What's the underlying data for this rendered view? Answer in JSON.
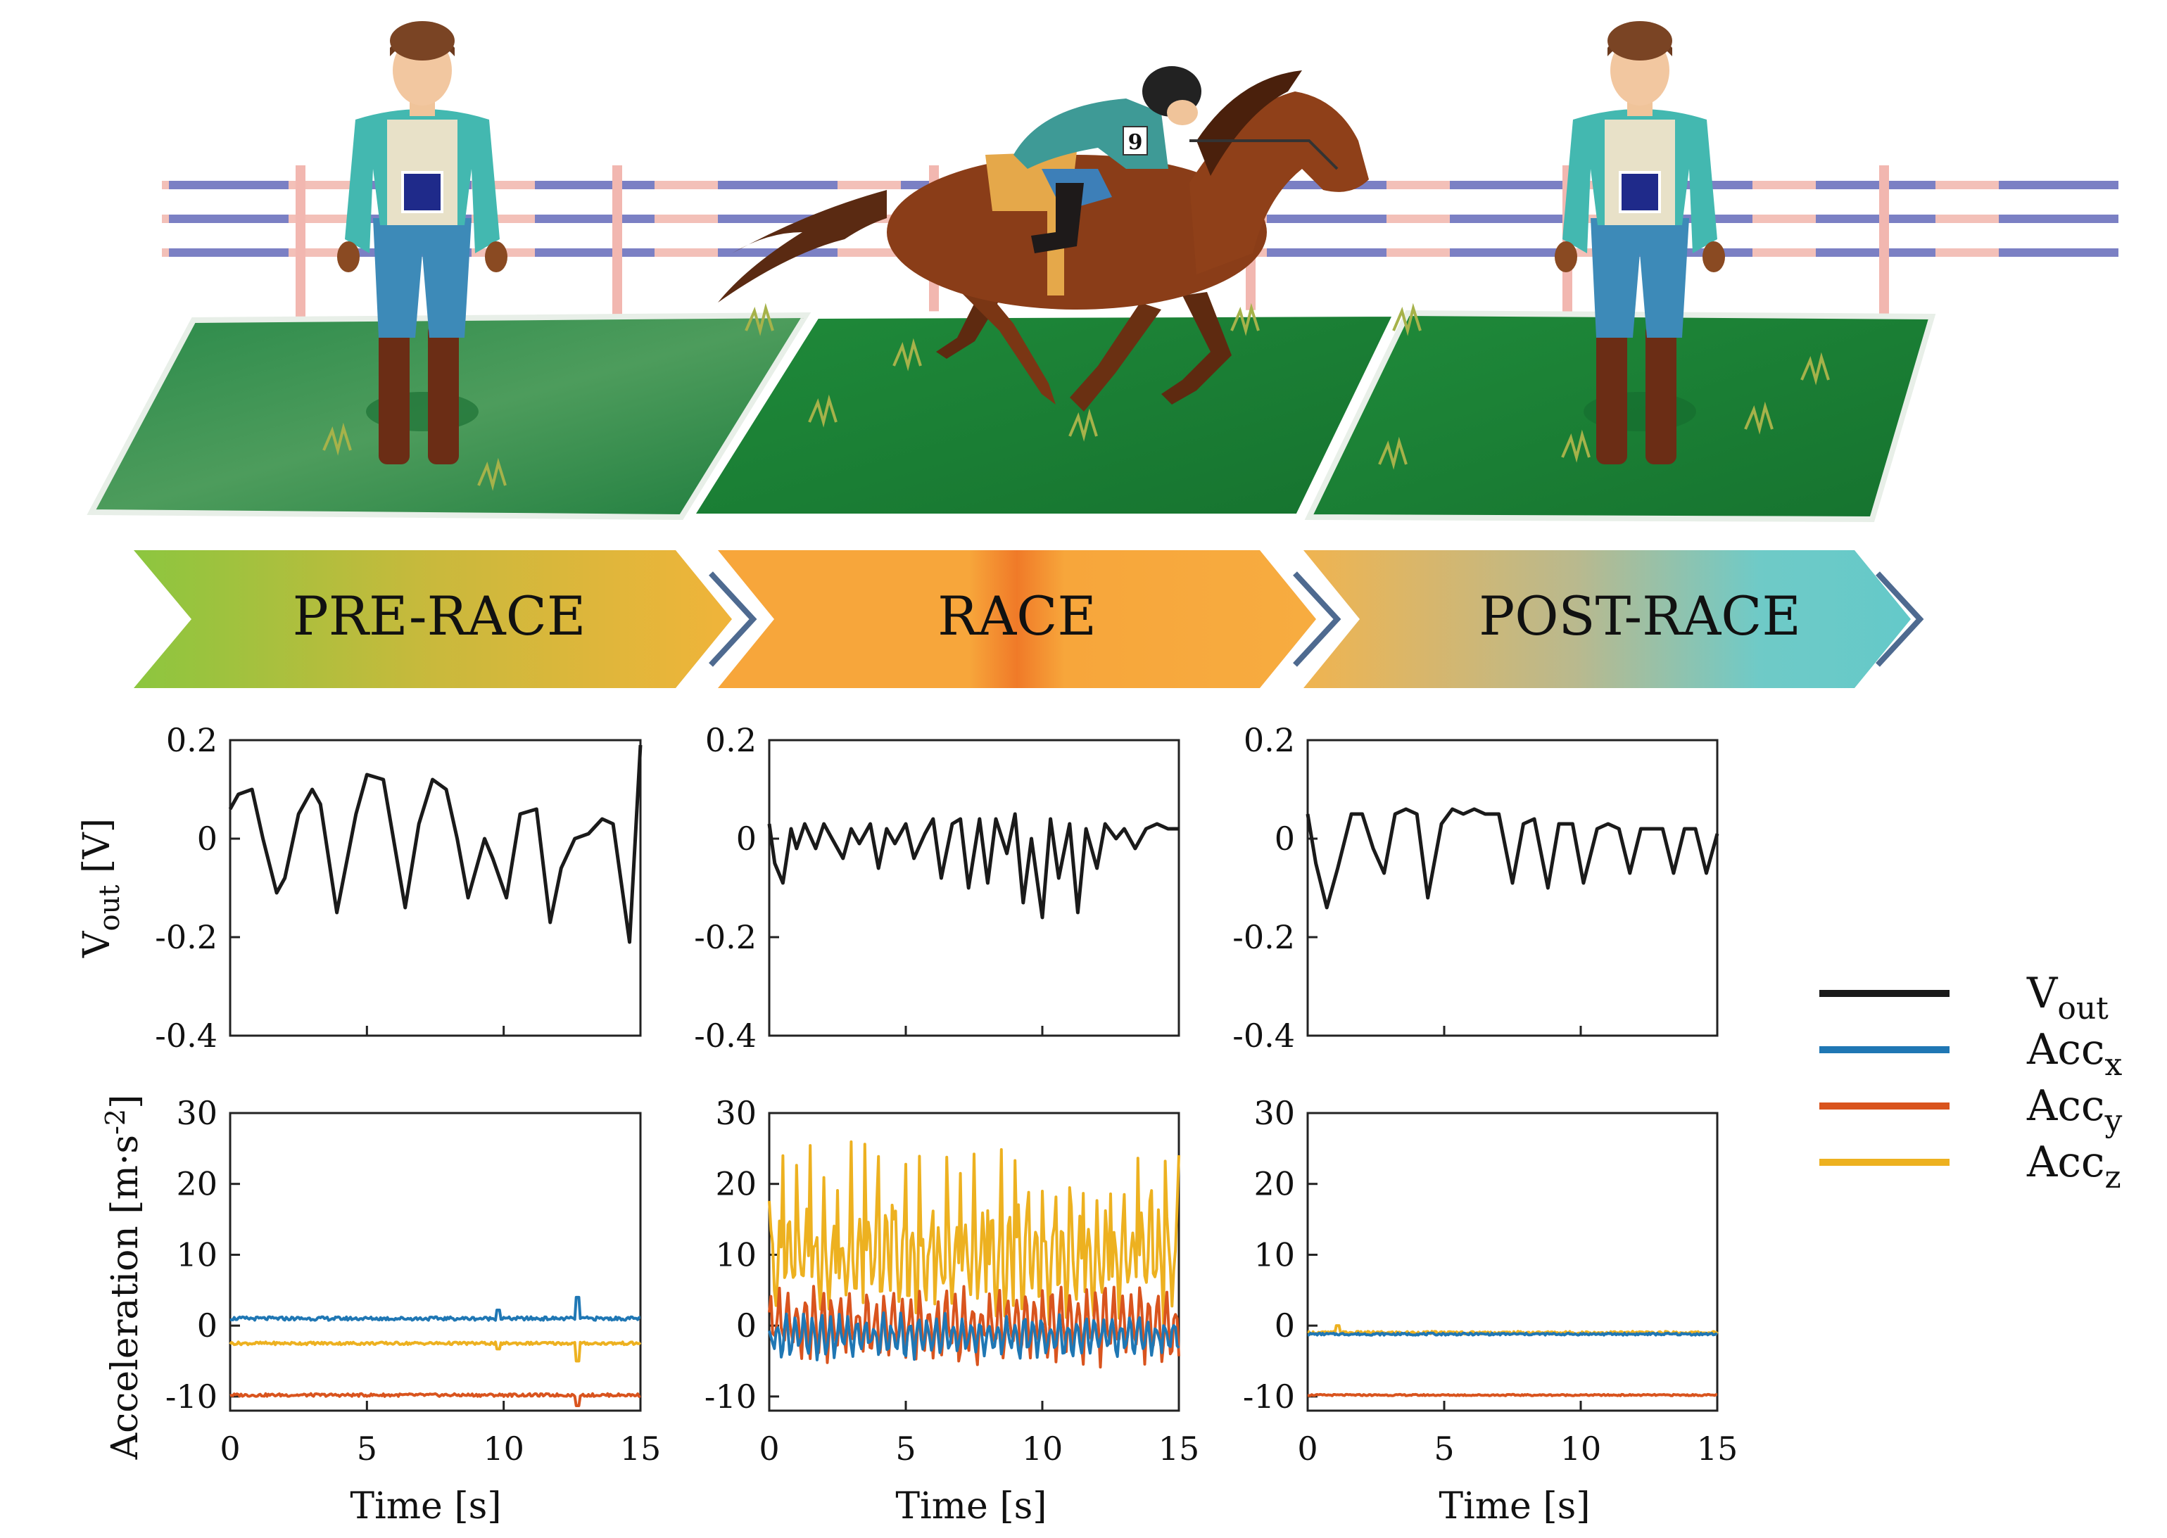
{
  "stages": [
    {
      "label": "PRE-RACE"
    },
    {
      "label": "RACE"
    },
    {
      "label": "POST-RACE"
    }
  ],
  "axis": {
    "x_label": "Time [s]",
    "vout_label_main": "V",
    "vout_label_sub": "out",
    "vout_label_unit": " [V]",
    "acc_label_main": "Acceleration [m·s",
    "acc_label_sup": "-2",
    "acc_label_end": "]"
  },
  "jockey": {
    "bib_number": "9"
  },
  "colors": {
    "vout": "#1a1a1a",
    "acc_x": "#1f77b4",
    "acc_y": "#d9541e",
    "acc_z": "#edb120",
    "grass": "#1e8a3c",
    "fence_rail": "#7b80c4",
    "fence_post": "#f2b7b0"
  },
  "legend": [
    {
      "main": "V",
      "sub": "out",
      "color": "#1a1a1a"
    },
    {
      "main": "Acc",
      "sub": "x",
      "color": "#1f77b4"
    },
    {
      "main": "Acc",
      "sub": "y",
      "color": "#d9541e"
    },
    {
      "main": "Acc",
      "sub": "z",
      "color": "#edb120"
    }
  ],
  "chart_data": [
    {
      "type": "line",
      "panel": "PRE-RACE",
      "ylabel": "V_out [V]",
      "xlim": [
        0,
        15
      ],
      "ylim": [
        -0.4,
        0.2
      ],
      "xticks": [
        0,
        5,
        10,
        15
      ],
      "yticks": [
        -0.4,
        -0.2,
        0,
        0.2
      ],
      "series": [
        {
          "name": "Vout",
          "x": [
            0,
            0.3,
            0.8,
            1.2,
            1.7,
            2.0,
            2.5,
            3.0,
            3.3,
            3.9,
            4.6,
            5.0,
            5.6,
            6.4,
            6.9,
            7.4,
            7.9,
            8.3,
            8.7,
            9.0,
            9.3,
            9.6,
            10.1,
            10.6,
            11.2,
            11.7,
            12.1,
            12.6,
            13.1,
            13.6,
            14.0,
            14.6,
            15.0
          ],
          "values": [
            0.06,
            0.09,
            0.1,
            0.0,
            -0.11,
            -0.08,
            0.05,
            0.1,
            0.07,
            -0.15,
            0.05,
            0.13,
            0.12,
            -0.14,
            0.03,
            0.12,
            0.1,
            0.0,
            -0.12,
            -0.06,
            0.0,
            -0.04,
            -0.12,
            0.05,
            0.06,
            -0.17,
            -0.06,
            -0.0,
            0.01,
            0.04,
            0.03,
            -0.21,
            0.19
          ]
        }
      ]
    },
    {
      "type": "line",
      "panel": "RACE",
      "ylabel": "V_out [V]",
      "xlim": [
        0,
        15
      ],
      "ylim": [
        -0.4,
        0.2
      ],
      "xticks": [
        0,
        5,
        10,
        15
      ],
      "yticks": [
        -0.4,
        -0.2,
        0,
        0.2
      ],
      "series": [
        {
          "name": "Vout",
          "x": [
            0,
            0.2,
            0.5,
            0.8,
            1.0,
            1.3,
            1.7,
            2.0,
            2.3,
            2.7,
            3.0,
            3.3,
            3.7,
            4.0,
            4.3,
            4.6,
            5.0,
            5.3,
            5.7,
            6.0,
            6.3,
            6.7,
            7.0,
            7.3,
            7.7,
            8.0,
            8.3,
            8.7,
            9.0,
            9.3,
            9.6,
            10.0,
            10.3,
            10.6,
            11.0,
            11.3,
            11.6,
            12.0,
            12.3,
            12.7,
            13.0,
            13.4,
            13.8,
            14.2,
            14.6,
            15.0
          ],
          "values": [
            0.03,
            -0.05,
            -0.09,
            0.02,
            -0.02,
            0.03,
            -0.02,
            0.03,
            0.0,
            -0.04,
            0.02,
            -0.01,
            0.03,
            -0.06,
            0.02,
            -0.01,
            0.03,
            -0.04,
            0.01,
            0.04,
            -0.08,
            0.03,
            0.04,
            -0.1,
            0.04,
            -0.09,
            0.04,
            -0.03,
            0.05,
            -0.13,
            0.0,
            -0.16,
            0.04,
            -0.08,
            0.03,
            -0.15,
            0.02,
            -0.06,
            0.03,
            0.0,
            0.02,
            -0.02,
            0.02,
            0.03,
            0.02,
            0.02
          ]
        }
      ]
    },
    {
      "type": "line",
      "panel": "POST-RACE",
      "ylabel": "V_out [V]",
      "xlim": [
        0,
        15
      ],
      "ylim": [
        -0.4,
        0.2
      ],
      "xticks": [
        0,
        5,
        10,
        15
      ],
      "yticks": [
        -0.4,
        -0.2,
        0,
        0.2
      ],
      "series": [
        {
          "name": "Vout",
          "x": [
            0,
            0.3,
            0.7,
            1.1,
            1.6,
            2.0,
            2.4,
            2.8,
            3.2,
            3.6,
            4.0,
            4.4,
            4.9,
            5.3,
            5.7,
            6.1,
            6.5,
            7.0,
            7.5,
            7.9,
            8.3,
            8.8,
            9.2,
            9.7,
            10.1,
            10.6,
            11.0,
            11.4,
            11.8,
            12.2,
            12.6,
            13.0,
            13.4,
            13.8,
            14.2,
            14.6,
            15.0
          ],
          "values": [
            0.05,
            -0.05,
            -0.14,
            -0.06,
            0.05,
            0.05,
            -0.02,
            -0.07,
            0.05,
            0.06,
            0.05,
            -0.12,
            0.03,
            0.06,
            0.05,
            0.06,
            0.05,
            0.05,
            -0.09,
            0.03,
            0.04,
            -0.1,
            0.03,
            0.03,
            -0.09,
            0.02,
            0.03,
            0.02,
            -0.07,
            0.02,
            0.02,
            0.02,
            -0.07,
            0.02,
            0.02,
            -0.07,
            0.01
          ]
        }
      ]
    },
    {
      "type": "line",
      "panel": "PRE-RACE",
      "ylabel": "Acceleration [m·s^-2]",
      "xlabel": "Time [s]",
      "xlim": [
        0,
        15
      ],
      "ylim": [
        -12,
        30
      ],
      "xticks": [
        0,
        5,
        10,
        15
      ],
      "yticks": [
        -10,
        0,
        10,
        20,
        30
      ],
      "series": [
        {
          "name": "Accx",
          "level": 1.0,
          "noise": 0.25,
          "spikes": [
            [
              9.8,
              1.2
            ],
            [
              12.7,
              3.0
            ]
          ]
        },
        {
          "name": "Accy",
          "level": -9.8,
          "noise": 0.2,
          "spikes": [
            [
              12.7,
              -1.5
            ]
          ]
        },
        {
          "name": "Accz",
          "level": -2.5,
          "noise": 0.2,
          "spikes": [
            [
              9.8,
              -0.8
            ],
            [
              12.7,
              -2.5
            ]
          ]
        }
      ]
    },
    {
      "type": "line",
      "panel": "RACE",
      "ylabel": "Acceleration [m·s^-2]",
      "xlabel": "Time [s]",
      "xlim": [
        0,
        15
      ],
      "ylim": [
        -12,
        30
      ],
      "xticks": [
        0,
        5,
        10,
        15
      ],
      "yticks": [
        -10,
        0,
        10,
        20,
        30
      ],
      "series": [
        {
          "name": "Accx",
          "level": -1.5,
          "amplitude": 3.5,
          "min": -6,
          "max": 2
        },
        {
          "name": "Accy",
          "level": 0.0,
          "amplitude": 6.0,
          "min": -6,
          "max": 6
        },
        {
          "name": "Accz",
          "level": 9.0,
          "amplitude": 9.0,
          "min": 0,
          "max": 26
        }
      ]
    },
    {
      "type": "line",
      "panel": "POST-RACE",
      "ylabel": "Acceleration [m·s^-2]",
      "xlabel": "Time [s]",
      "xlim": [
        0,
        15
      ],
      "ylim": [
        -12,
        30
      ],
      "xticks": [
        0,
        5,
        10,
        15
      ],
      "yticks": [
        -10,
        0,
        10,
        20,
        30
      ],
      "series": [
        {
          "name": "Accx",
          "level": -1.2,
          "noise": 0.15,
          "spikes": []
        },
        {
          "name": "Accy",
          "level": -9.8,
          "noise": 0.1,
          "spikes": []
        },
        {
          "name": "Accz",
          "level": -1.0,
          "noise": 0.2,
          "spikes": [
            [
              1.1,
              1.0
            ]
          ]
        }
      ]
    }
  ]
}
